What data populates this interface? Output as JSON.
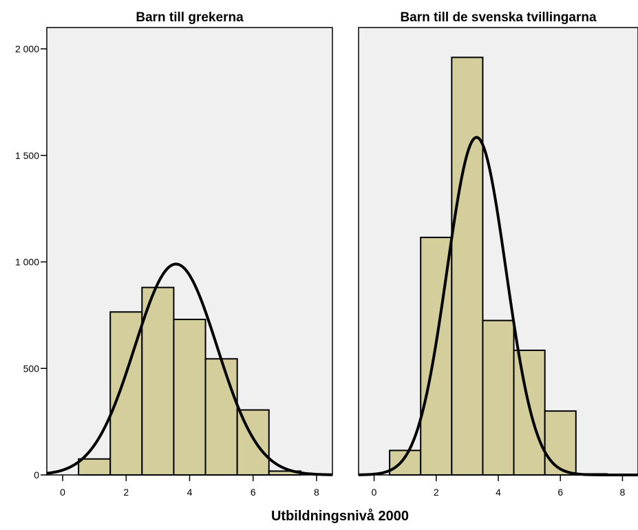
{
  "chart_data": {
    "type": "bar",
    "xlabel": "Utbildningsnivå 2000",
    "ylabel": "",
    "ylim": [
      0,
      2000
    ],
    "xlim": [
      -0.5,
      8.5
    ],
    "x_ticks": [
      0,
      2,
      4,
      6,
      8
    ],
    "y_ticks": [
      0,
      500,
      1000,
      1500,
      2000
    ],
    "y_tick_labels": [
      "0",
      "500",
      "1 000",
      "1 500",
      "2 000"
    ],
    "grid": false,
    "colors": {
      "bar": "#d3ce9b",
      "plot_background": "#f0f0f0",
      "curve": "#000000"
    },
    "panels": [
      {
        "title": "Barn till grekerna",
        "bins": [
          1,
          2,
          3,
          4,
          5,
          6,
          7
        ],
        "values": [
          75,
          765,
          880,
          730,
          545,
          305,
          18
        ],
        "normal_curve": {
          "mean": 3.57,
          "sd": 1.3,
          "peak": 990
        }
      },
      {
        "title": "Barn till de svenska tvillingarna",
        "bins": [
          1,
          2,
          3,
          4,
          5,
          6,
          7
        ],
        "values": [
          115,
          1115,
          1960,
          725,
          585,
          300,
          5
        ],
        "normal_curve": {
          "mean": 3.3,
          "sd": 0.95,
          "peak": 1585
        }
      }
    ]
  }
}
